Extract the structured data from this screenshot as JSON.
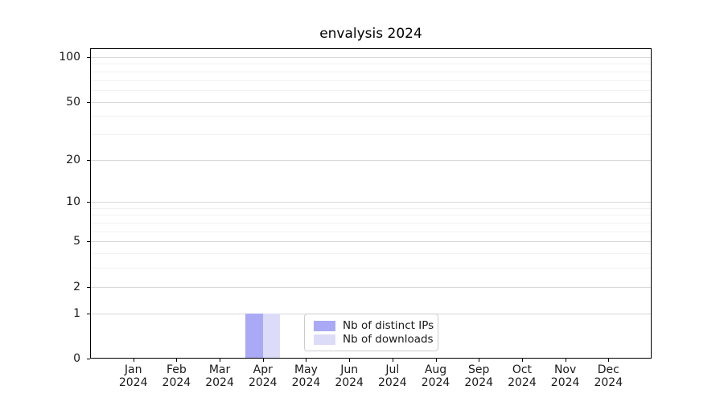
{
  "chart_data": {
    "type": "bar",
    "title": "envalysis 2024",
    "categories": [
      "Jan",
      "Feb",
      "Mar",
      "Apr",
      "May",
      "Jun",
      "Jul",
      "Aug",
      "Sep",
      "Oct",
      "Nov",
      "Dec"
    ],
    "category_sublabel": "2024",
    "series": [
      {
        "name": "Nb of distinct IPs",
        "color": "#a9a9f5",
        "values": [
          0,
          0,
          0,
          1,
          0,
          0,
          0,
          0,
          0,
          0,
          0,
          0
        ]
      },
      {
        "name": "Nb of downloads",
        "color": "#dcdcf9",
        "values": [
          0,
          0,
          0,
          1,
          0,
          0,
          0,
          0,
          0,
          0,
          0,
          0
        ]
      }
    ],
    "xlabel": "",
    "ylabel": "",
    "yscale": "log1p",
    "ylim": [
      0,
      101
    ],
    "yticks": [
      0,
      1,
      2,
      5,
      10,
      20,
      50,
      100
    ],
    "minor_gridlines": [
      3,
      4,
      6,
      7,
      8,
      9,
      30,
      40,
      60,
      70,
      80,
      90
    ],
    "grid": "horizontal",
    "legend_position": "lower center inside",
    "colors": {
      "axis": "#000000",
      "major_grid": "#d9d9d9",
      "minor_grid": "#f1f1f1",
      "text": "#1a1a1a"
    }
  }
}
